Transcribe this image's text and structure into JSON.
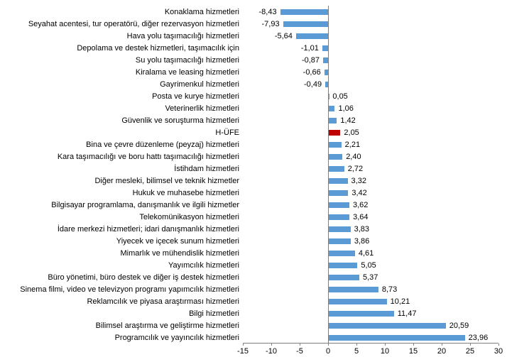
{
  "chart_data": {
    "type": "bar",
    "orientation": "horizontal",
    "title": "",
    "xlabel": "",
    "ylabel": "",
    "grid": false,
    "legend": "none",
    "bar_color": "#5B9BD5",
    "highlight_color": "#C00000",
    "highlight_category": "H-ÜFE",
    "axis_color": "#808080",
    "text_color": "#000000",
    "xlim": [
      -15,
      30
    ],
    "tick_step": 5,
    "ticks": [
      -15,
      -10,
      -5,
      0,
      5,
      10,
      15,
      20,
      25,
      30
    ],
    "tick_labels": [
      "-15",
      "-10",
      "-5",
      "0",
      "5",
      "10",
      "15",
      "20",
      "25",
      "30"
    ],
    "categories": [
      "Konaklama hizmetleri",
      "Seyahat acentesi, tur operatörü, diğer rezervasyon hizmetleri",
      "Hava yolu taşımacılığı hizmetleri",
      "Depolama ve destek hizmetleri, taşımacılık için",
      "Su yolu taşımacılığı hizmetleri",
      "Kiralama ve leasing hizmetleri",
      "Gayrimenkul hizmetleri",
      "Posta ve kurye hizmetleri",
      "Veterinerlik hizmetleri",
      "Güvenlik ve soruşturma hizmetleri",
      "H-ÜFE",
      "Bina ve çevre düzenleme (peyzaj) hizmetleri",
      "Kara taşımacılığı ve boru hattı taşımacılığı hizmetleri",
      "İstihdam hizmetleri",
      "Diğer mesleki, bilimsel ve teknik hizmetler",
      "Hukuk ve muhasebe hizmetleri",
      "Bilgisayar programlama, danışmanlık ve ilgili hizmetler",
      "Telekomünikasyon hizmetleri",
      "İdare merkezi hizmetleri; idari danışmanlık hizmetleri",
      "Yiyecek ve içecek sunum hizmetleri",
      "Mimarlık ve mühendislik hizmetleri",
      "Yayımcılık hizmetleri",
      "Büro yönetimi, büro destek ve diğer iş destek hizmetleri",
      "Sinema filmi, video ve televizyon programı yapımcılık hizmetleri",
      "Reklamcılık ve piyasa araştırması hizmetleri",
      "Bilgi hizmetleri",
      "Bilimsel araştırma ve geliştirme hizmetleri",
      "Programcılık ve yayıncılık hizmetleri"
    ],
    "values": [
      -8.43,
      -7.93,
      -5.64,
      -1.01,
      -0.87,
      -0.66,
      -0.49,
      0.05,
      1.06,
      1.42,
      2.05,
      2.21,
      2.4,
      2.72,
      3.32,
      3.42,
      3.62,
      3.64,
      3.83,
      3.86,
      4.61,
      5.05,
      5.37,
      8.73,
      10.21,
      11.47,
      20.59,
      23.96
    ],
    "value_labels": [
      "-8,43",
      "-7,93",
      "-5,64",
      "-1,01",
      "-0,87",
      "-0,66",
      "-0,49",
      "0,05",
      "1,06",
      "1,42",
      "2,05",
      "2,21",
      "2,40",
      "2,72",
      "3,32",
      "3,42",
      "3,62",
      "3,64",
      "3,83",
      "3,86",
      "4,61",
      "5,05",
      "5,37",
      "8,73",
      "10,21",
      "11,47",
      "20,59",
      "23,96"
    ]
  }
}
